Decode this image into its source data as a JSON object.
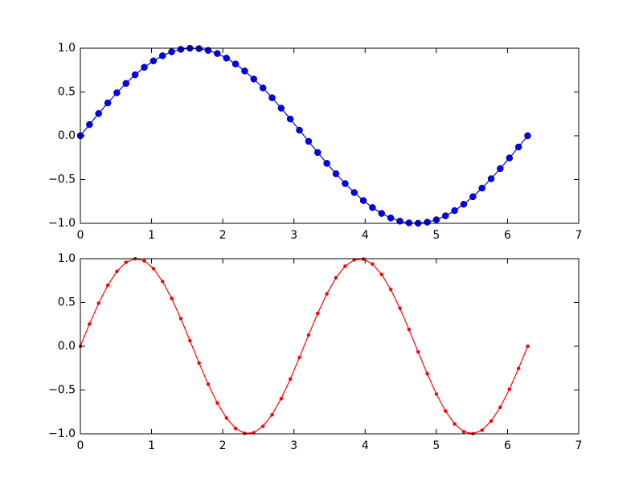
{
  "chart_data": [
    {
      "type": "line",
      "x": [
        0,
        0.128,
        0.256,
        0.385,
        0.513,
        0.641,
        0.769,
        0.898,
        1.026,
        1.154,
        1.282,
        1.411,
        1.539,
        1.667,
        1.795,
        1.923,
        2.052,
        2.18,
        2.308,
        2.436,
        2.565,
        2.693,
        2.821,
        2.949,
        3.077,
        3.206,
        3.334,
        3.462,
        3.59,
        3.719,
        3.847,
        3.975,
        4.103,
        4.231,
        4.36,
        4.488,
        4.616,
        4.744,
        4.873,
        5.001,
        5.129,
        5.257,
        5.385,
        5.514,
        5.642,
        5.77,
        5.898,
        6.027,
        6.155,
        6.283
      ],
      "series": [
        {
          "color": "#0000ff",
          "marker": "o",
          "values": [
            0,
            0.128,
            0.254,
            0.375,
            0.491,
            0.598,
            0.696,
            0.782,
            0.855,
            0.914,
            0.959,
            0.987,
            0.999,
            0.995,
            0.975,
            0.939,
            0.887,
            0.82,
            0.74,
            0.648,
            0.546,
            0.434,
            0.315,
            0.191,
            0.064,
            -0.064,
            -0.191,
            -0.315,
            -0.434,
            -0.546,
            -0.648,
            -0.74,
            -0.82,
            -0.887,
            -0.939,
            -0.975,
            -0.995,
            -0.999,
            -0.987,
            -0.959,
            -0.914,
            -0.855,
            -0.782,
            -0.696,
            -0.598,
            -0.491,
            -0.375,
            -0.254,
            -0.128,
            0
          ]
        }
      ],
      "xlim": [
        0,
        7
      ],
      "xticks": [
        0,
        1,
        2,
        3,
        4,
        5,
        6,
        7
      ],
      "ylim": [
        -1,
        1
      ],
      "yticks": [
        {
          "value": -1,
          "label": "−1.0"
        },
        {
          "value": -0.5,
          "label": "−0.5"
        },
        {
          "value": 0,
          "label": "0.0"
        },
        {
          "value": 0.5,
          "label": "0.5"
        },
        {
          "value": 1,
          "label": "1.0"
        }
      ]
    },
    {
      "type": "line",
      "x": [
        0,
        0.128,
        0.256,
        0.385,
        0.513,
        0.641,
        0.769,
        0.898,
        1.026,
        1.154,
        1.282,
        1.411,
        1.539,
        1.667,
        1.795,
        1.923,
        2.052,
        2.18,
        2.308,
        2.436,
        2.565,
        2.693,
        2.821,
        2.949,
        3.077,
        3.206,
        3.334,
        3.462,
        3.59,
        3.719,
        3.847,
        3.975,
        4.103,
        4.231,
        4.36,
        4.488,
        4.616,
        4.744,
        4.873,
        5.001,
        5.129,
        5.257,
        5.385,
        5.514,
        5.642,
        5.77,
        5.898,
        6.027,
        6.155,
        6.283
      ],
      "series": [
        {
          "color": "#ff0000",
          "marker": ".",
          "values": [
            0,
            0.254,
            0.491,
            0.696,
            0.855,
            0.959,
            0.999,
            0.975,
            0.887,
            0.74,
            0.546,
            0.315,
            0.064,
            -0.191,
            -0.434,
            -0.648,
            -0.82,
            -0.939,
            -0.995,
            -0.987,
            -0.914,
            -0.782,
            -0.598,
            -0.375,
            -0.128,
            0.128,
            0.375,
            0.598,
            0.782,
            0.914,
            0.987,
            0.995,
            0.939,
            0.82,
            0.648,
            0.434,
            0.191,
            -0.064,
            -0.315,
            -0.546,
            -0.74,
            -0.887,
            -0.975,
            -0.999,
            -0.959,
            -0.855,
            -0.696,
            -0.491,
            -0.254,
            0
          ]
        }
      ],
      "xlim": [
        0,
        7
      ],
      "xticks": [
        0,
        1,
        2,
        3,
        4,
        5,
        6,
        7
      ],
      "ylim": [
        -1,
        1
      ],
      "yticks": [
        {
          "value": -1,
          "label": "−1.0"
        },
        {
          "value": -0.5,
          "label": "−0.5"
        },
        {
          "value": 0,
          "label": "0.0"
        },
        {
          "value": 0.5,
          "label": "0.5"
        },
        {
          "value": 1,
          "label": "1.0"
        }
      ]
    }
  ]
}
